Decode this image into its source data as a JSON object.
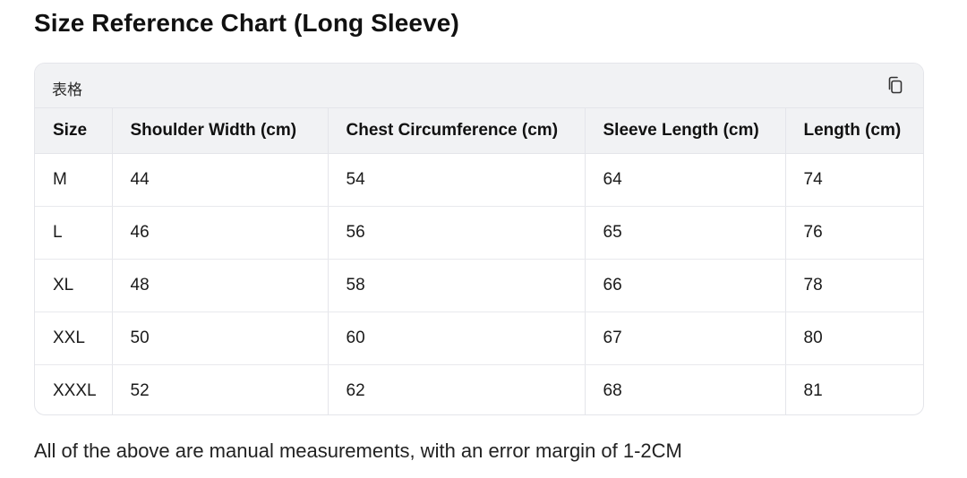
{
  "title": "Size Reference Chart (Long Sleeve)",
  "table_card": {
    "label": "表格",
    "copy_icon": "copy-icon"
  },
  "table": {
    "headers": [
      "Size",
      "Shoulder Width (cm)",
      "Chest Circumference (cm)",
      "Sleeve Length (cm)",
      "Length (cm)"
    ],
    "rows": [
      [
        "M",
        "44",
        "54",
        "64",
        "74"
      ],
      [
        "L",
        "46",
        "56",
        "65",
        "76"
      ],
      [
        "XL",
        "48",
        "58",
        "66",
        "78"
      ],
      [
        "XXL",
        "50",
        "60",
        "67",
        "80"
      ],
      [
        "XXXL",
        "52",
        "62",
        "68",
        "81"
      ]
    ]
  },
  "note": "All of the above are manual measurements, with an error margin of 1-2CM"
}
